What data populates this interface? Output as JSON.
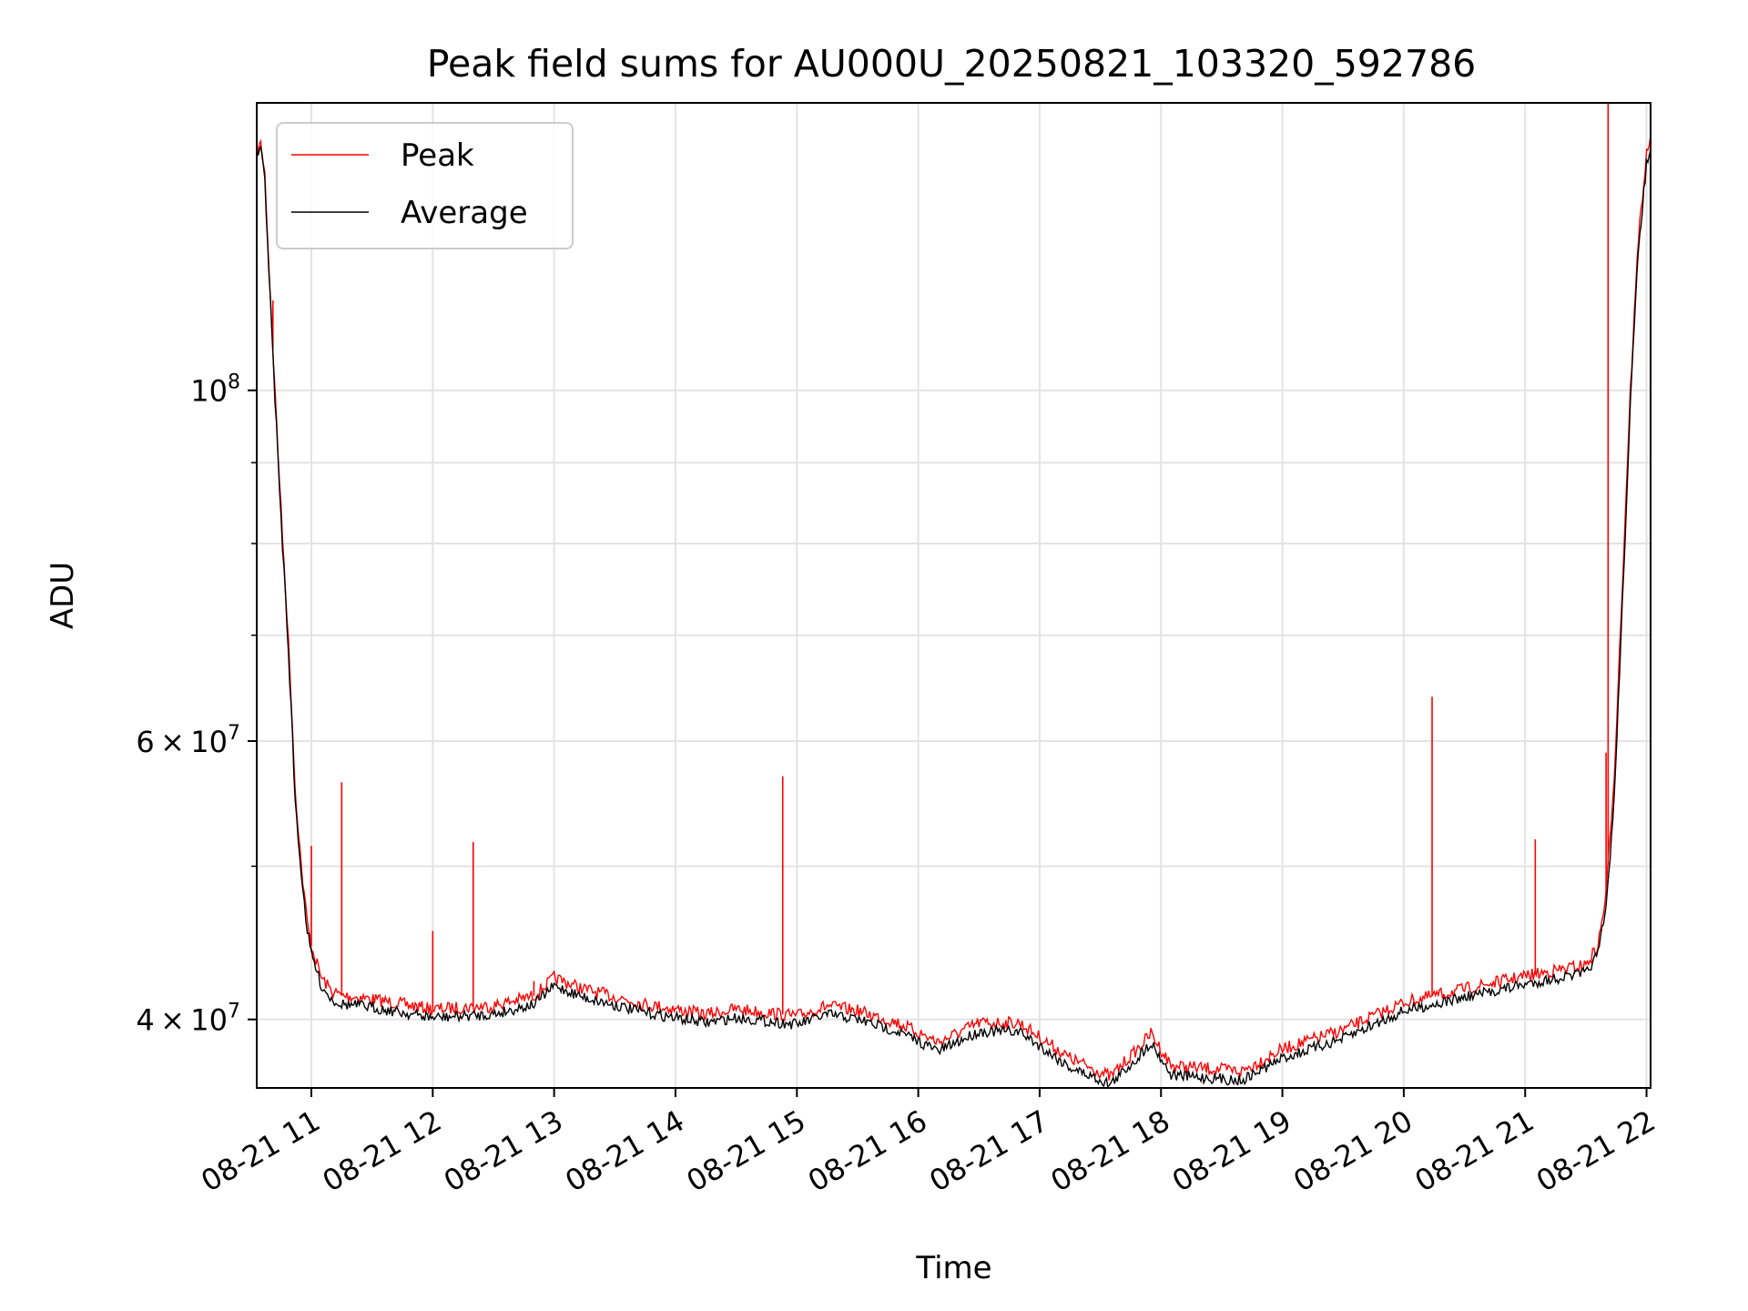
{
  "chart_data": {
    "type": "line",
    "title": "Peak field sums for AU000U_20250821_103320_592786",
    "xlabel": "Time",
    "ylabel": "ADU",
    "y_scale": "log",
    "ylim": [
      36200000,
      152000000
    ],
    "xlim": [
      "2025-08-21 10:33",
      "2025-08-21 22:02"
    ],
    "grid": true,
    "legend_position": "upper-left",
    "x_tick_labels": [
      "08-21 11",
      "08-21 12",
      "08-21 13",
      "08-21 14",
      "08-21 15",
      "08-21 16",
      "08-21 17",
      "08-21 18",
      "08-21 19",
      "08-21 20",
      "08-21 21",
      "08-21 22"
    ],
    "x_ticks": [
      "2025-08-21 11:00",
      "2025-08-21 12:00",
      "2025-08-21 13:00",
      "2025-08-21 14:00",
      "2025-08-21 15:00",
      "2025-08-21 16:00",
      "2025-08-21 17:00",
      "2025-08-21 18:00",
      "2025-08-21 19:00",
      "2025-08-21 20:00",
      "2025-08-21 21:00",
      "2025-08-21 22:00"
    ],
    "y_tick_labels": [
      {
        "value": 40000000,
        "base": "4",
        "exponent": "7",
        "times": "×",
        "ten": "10"
      },
      {
        "value": 60000000,
        "base": "6",
        "exponent": "7",
        "times": "×",
        "ten": "10"
      },
      {
        "value": 100000000,
        "base": "",
        "exponent": "8",
        "times": "",
        "ten": "10"
      }
    ],
    "y_minor_ticks": [
      50000000,
      70000000,
      80000000,
      90000000
    ],
    "series": [
      {
        "name": "Peak",
        "color": "#ff0000",
        "x": [
          "2025-08-21 10:33",
          "2025-08-21 10:35",
          "2025-08-21 10:37",
          "2025-08-21 10:39",
          "2025-08-21 10:42",
          "2025-08-21 10:45",
          "2025-08-21 10:48",
          "2025-08-21 10:50",
          "2025-08-21 10:52",
          "2025-08-21 10:55",
          "2025-08-21 10:58",
          "2025-08-21 11:00",
          "2025-08-21 11:05",
          "2025-08-21 11:10",
          "2025-08-21 11:15",
          "2025-08-21 11:25",
          "2025-08-21 11:40",
          "2025-08-21 12:00",
          "2025-08-21 12:30",
          "2025-08-21 12:50",
          "2025-08-21 13:00",
          "2025-08-21 13:15",
          "2025-08-21 13:45",
          "2025-08-21 14:15",
          "2025-08-21 14:30",
          "2025-08-21 14:45",
          "2025-08-21 15:00",
          "2025-08-21 15:15",
          "2025-08-21 15:30",
          "2025-08-21 15:50",
          "2025-08-21 16:10",
          "2025-08-21 16:30",
          "2025-08-21 16:50",
          "2025-08-21 17:15",
          "2025-08-21 17:35",
          "2025-08-21 17:50",
          "2025-08-21 17:55",
          "2025-08-21 18:05",
          "2025-08-21 18:15",
          "2025-08-21 18:40",
          "2025-08-21 19:00",
          "2025-08-21 19:30",
          "2025-08-21 20:00",
          "2025-08-21 20:30",
          "2025-08-21 21:00",
          "2025-08-21 21:30",
          "2025-08-21 21:36",
          "2025-08-21 21:40",
          "2025-08-21 21:44",
          "2025-08-21 21:48",
          "2025-08-21 21:52",
          "2025-08-21 21:56",
          "2025-08-21 22:00",
          "2025-08-21 22:02"
        ],
        "y": [
          142000000,
          143000000,
          137000000,
          120000000,
          100000000,
          84000000,
          72000000,
          64000000,
          56000000,
          50000000,
          46000000,
          44500000,
          42500000,
          41700000,
          41400000,
          41300000,
          41000000,
          40600000,
          40800000,
          41400000,
          42500000,
          41800000,
          40900000,
          40300000,
          40600000,
          40400000,
          40200000,
          40800000,
          40500000,
          39800000,
          38700000,
          39800000,
          39800000,
          37800000,
          36800000,
          38500000,
          39200000,
          37400000,
          37300000,
          37100000,
          38300000,
          39400000,
          41000000,
          41800000,
          42600000,
          43300000,
          44500000,
          48000000,
          57000000,
          75000000,
          100000000,
          125000000,
          141000000,
          145000000
        ],
        "spikes": [
          {
            "x": "2025-08-21 10:41",
            "y": 114000000
          },
          {
            "x": "2025-08-21 11:00",
            "y": 51500000
          },
          {
            "x": "2025-08-21 11:15",
            "y": 56500000
          },
          {
            "x": "2025-08-21 12:00",
            "y": 45500000
          },
          {
            "x": "2025-08-21 12:20",
            "y": 51800000
          },
          {
            "x": "2025-08-21 12:50",
            "y": 42300000
          },
          {
            "x": "2025-08-21 14:53",
            "y": 57000000
          },
          {
            "x": "2025-08-21 20:14",
            "y": 64000000
          },
          {
            "x": "2025-08-21 21:05",
            "y": 52000000
          },
          {
            "x": "2025-08-21 21:40",
            "y": 59000000
          },
          {
            "x": "2025-08-21 21:41",
            "y": 152000000
          }
        ]
      },
      {
        "name": "Average",
        "color": "#000000",
        "x": [
          "2025-08-21 10:33",
          "2025-08-21 10:35",
          "2025-08-21 10:37",
          "2025-08-21 10:39",
          "2025-08-21 10:42",
          "2025-08-21 10:45",
          "2025-08-21 10:48",
          "2025-08-21 10:50",
          "2025-08-21 10:52",
          "2025-08-21 10:55",
          "2025-08-21 10:58",
          "2025-08-21 11:00",
          "2025-08-21 11:05",
          "2025-08-21 11:10",
          "2025-08-21 11:15",
          "2025-08-21 11:25",
          "2025-08-21 11:40",
          "2025-08-21 12:00",
          "2025-08-21 12:30",
          "2025-08-21 12:50",
          "2025-08-21 13:00",
          "2025-08-21 13:15",
          "2025-08-21 13:45",
          "2025-08-21 14:15",
          "2025-08-21 14:30",
          "2025-08-21 14:45",
          "2025-08-21 15:00",
          "2025-08-21 15:15",
          "2025-08-21 15:30",
          "2025-08-21 15:50",
          "2025-08-21 16:10",
          "2025-08-21 16:30",
          "2025-08-21 16:50",
          "2025-08-21 17:15",
          "2025-08-21 17:35",
          "2025-08-21 17:50",
          "2025-08-21 17:55",
          "2025-08-21 18:05",
          "2025-08-21 18:15",
          "2025-08-21 18:40",
          "2025-08-21 19:00",
          "2025-08-21 19:30",
          "2025-08-21 20:00",
          "2025-08-21 20:30",
          "2025-08-21 21:00",
          "2025-08-21 21:30",
          "2025-08-21 21:36",
          "2025-08-21 21:40",
          "2025-08-21 21:44",
          "2025-08-21 21:48",
          "2025-08-21 21:52",
          "2025-08-21 21:56",
          "2025-08-21 22:00",
          "2025-08-21 22:02"
        ],
        "y": [
          141000000,
          142000000,
          136000000,
          119000000,
          99000000,
          83000000,
          71000000,
          63000000,
          55000000,
          49500000,
          45500000,
          44000000,
          42000000,
          41200000,
          40900000,
          40800000,
          40500000,
          40100000,
          40300000,
          40900000,
          42000000,
          41300000,
          40400000,
          39800000,
          40100000,
          39900000,
          39700000,
          40300000,
          40000000,
          39300000,
          38200000,
          39300000,
          39300000,
          37300000,
          36400000,
          38000000,
          38700000,
          36900000,
          36800000,
          36600000,
          37800000,
          38900000,
          40500000,
          41300000,
          42100000,
          42800000,
          44000000,
          47000000,
          55000000,
          73000000,
          98000000,
          123000000,
          139000000,
          142000000
        ]
      }
    ]
  }
}
